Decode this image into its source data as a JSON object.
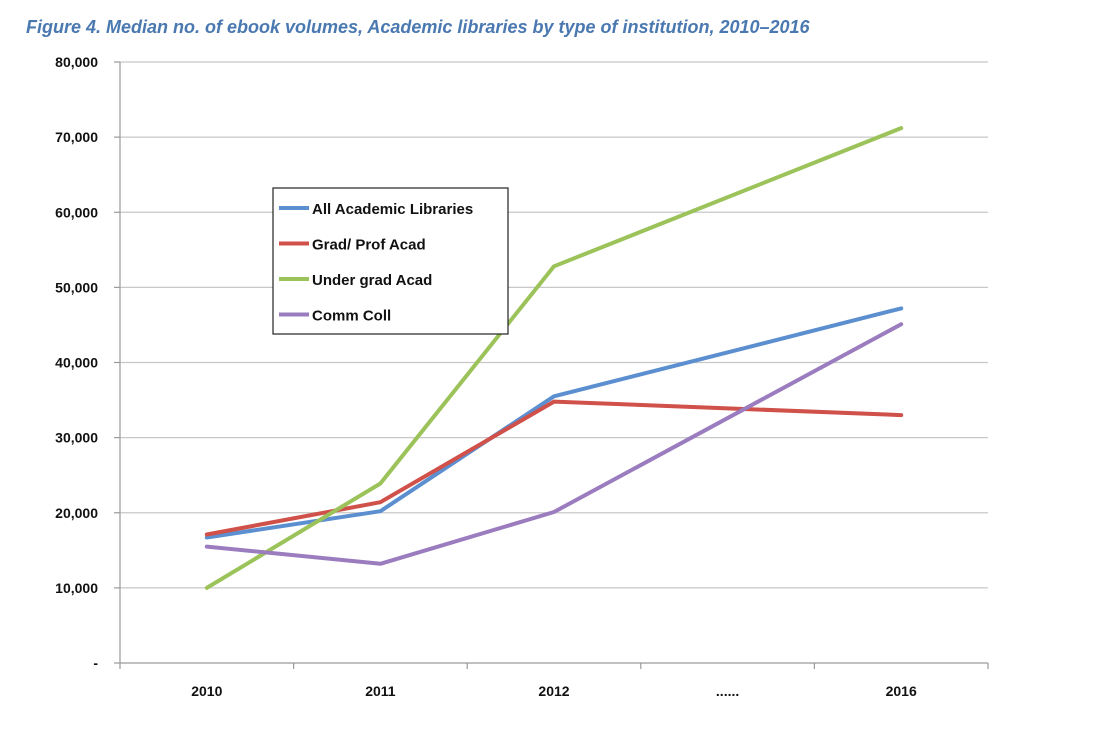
{
  "figure": {
    "title": "Figure 4. Median no. of ebook volumes, Academic libraries by type of institution, 2010–2016",
    "title_color": "#4a78b0"
  },
  "chart_data": {
    "type": "line",
    "title": "Figure 4. Median no. of ebook volumes, Academic libraries by type of institution, 2010–2016",
    "xlabel": "",
    "ylabel": "",
    "categories": [
      "2010",
      "2011",
      "2012",
      "......",
      "2016"
    ],
    "y_ticks": [
      {
        "value": 0,
        "label": "-"
      },
      {
        "value": 10000,
        "label": "10,000"
      },
      {
        "value": 20000,
        "label": "20,000"
      },
      {
        "value": 30000,
        "label": "30,000"
      },
      {
        "value": 40000,
        "label": "40,000"
      },
      {
        "value": 50000,
        "label": "50,000"
      },
      {
        "value": 60000,
        "label": "60,000"
      },
      {
        "value": 70000,
        "label": "70,000"
      },
      {
        "value": 80000,
        "label": "80,000"
      }
    ],
    "ylim": [
      0,
      80000
    ],
    "grid": true,
    "legend_position": "center-left",
    "series": [
      {
        "name": "All Academic Libraries",
        "color": "#5b8fd0",
        "values": [
          16700,
          20200,
          35500,
          null,
          47200
        ]
      },
      {
        "name": "Grad/ Prof Acad",
        "color": "#d0504a",
        "values": [
          17100,
          21400,
          34800,
          null,
          33000
        ]
      },
      {
        "name": "Under grad Acad",
        "color": "#9bc35a",
        "values": [
          10000,
          23900,
          52800,
          null,
          71200
        ]
      },
      {
        "name": "Comm Coll",
        "color": "#9a7cbf",
        "values": [
          15500,
          13200,
          20100,
          null,
          45100
        ]
      }
    ]
  }
}
